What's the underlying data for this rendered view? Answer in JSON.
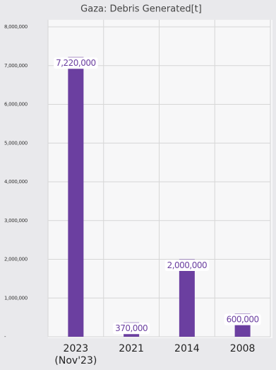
{
  "chart_data": {
    "type": "bar",
    "title": "Gaza: Debris Generated[t]",
    "categories": [
      "2023 (Nov'23)",
      "2021",
      "2014",
      "2008"
    ],
    "values": [
      7220000,
      370000,
      2000000,
      600000
    ],
    "value_labels": [
      "7,220,000",
      "370,000",
      "2,000,000",
      "600,000"
    ],
    "color": "#6b3fa0",
    "ylim": [
      0,
      8000000
    ],
    "yticks": [
      {
        "value": 0,
        "label": "-"
      },
      {
        "value": 1000000,
        "label": "1,000,000"
      },
      {
        "value": 2000000,
        "label": "2,000,000"
      },
      {
        "value": 3000000,
        "label": "3,000,000"
      },
      {
        "value": 4000000,
        "label": "4,000,000"
      },
      {
        "value": 5000000,
        "label": "5,000,000"
      },
      {
        "value": 6000000,
        "label": "6,000,000"
      },
      {
        "value": 7000000,
        "label": "7,000,000"
      },
      {
        "value": 8000000,
        "label": "8,000,000"
      }
    ],
    "grid": true
  }
}
